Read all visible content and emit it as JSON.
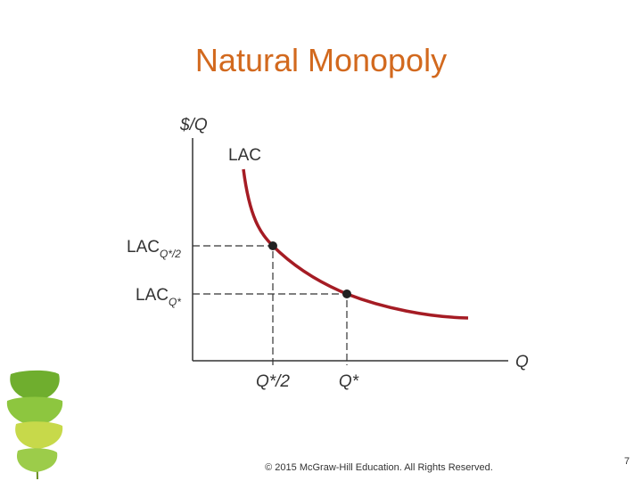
{
  "header": {
    "title": "Natural Monopoly"
  },
  "diagram": {
    "y_axis_label": "$/Q",
    "x_axis_label": "Q",
    "curve_label": "LAC",
    "y_tick_labels": [
      {
        "main": "LAC",
        "sub": "Q*/2"
      },
      {
        "main": "LAC",
        "sub": "Q*"
      }
    ],
    "x_tick_labels": [
      "Q*/2",
      "Q*"
    ]
  },
  "footer": {
    "copyright": "© 2015 McGraw-Hill Education. All Rights Reserved.",
    "page_number": "7"
  }
}
